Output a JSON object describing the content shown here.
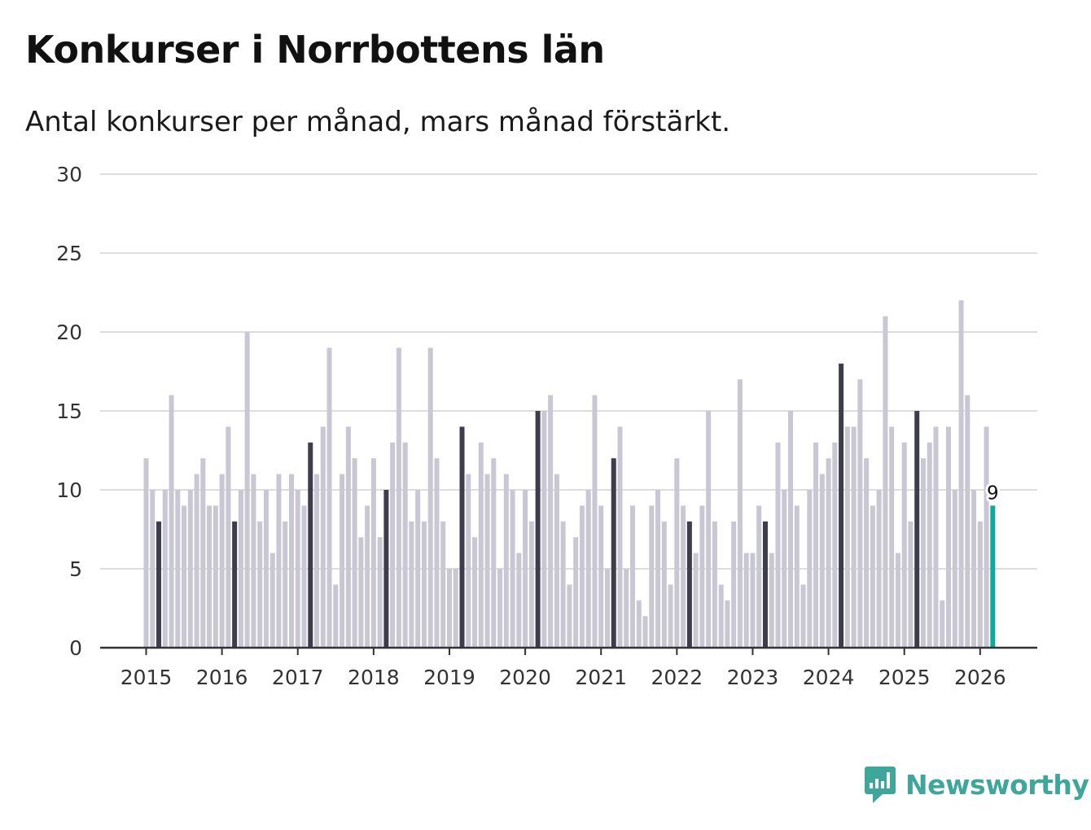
{
  "header": {
    "title": "Konkurser i Norrbottens län",
    "subtitle": "Antal konkurser per månad, mars månad förstärkt."
  },
  "brand": {
    "name": "Newsworthy",
    "icon": "newsworthy-logo-icon"
  },
  "colors": {
    "default_bar": "#c8c7d3",
    "highlight_bar": "#3e3d4d",
    "latest_bar": "#14a89b",
    "gridline": "#dddddd",
    "axis": "#333333",
    "brand": "#3fa69c"
  },
  "chart_data": {
    "type": "bar",
    "title": "Konkurser i Norrbottens län",
    "subtitle": "Antal konkurser per månad, mars månad förstärkt.",
    "xlabel": "",
    "ylabel": "",
    "ylim": [
      0,
      30
    ],
    "yticks": [
      0,
      5,
      10,
      15,
      20,
      25,
      30
    ],
    "xticks": [
      "2015",
      "2016",
      "2017",
      "2018",
      "2019",
      "2020",
      "2021",
      "2022",
      "2023",
      "2024",
      "2025",
      "2026"
    ],
    "grid": true,
    "start": "2015-01",
    "highlight_month": "03",
    "annotation": {
      "month": "2026-03",
      "text": "9"
    },
    "values": [
      12,
      10,
      8,
      10,
      16,
      10,
      9,
      10,
      11,
      12,
      9,
      9,
      11,
      14,
      8,
      10,
      20,
      11,
      8,
      10,
      6,
      11,
      8,
      11,
      10,
      9,
      13,
      11,
      14,
      19,
      4,
      11,
      14,
      12,
      7,
      9,
      12,
      7,
      10,
      13,
      19,
      13,
      8,
      10,
      8,
      19,
      12,
      8,
      5,
      5,
      14,
      11,
      7,
      13,
      11,
      12,
      5,
      11,
      10,
      6,
      10,
      8,
      15,
      15,
      16,
      11,
      8,
      4,
      7,
      9,
      10,
      16,
      9,
      5,
      12,
      14,
      5,
      9,
      3,
      2,
      9,
      10,
      8,
      4,
      12,
      9,
      8,
      6,
      9,
      15,
      8,
      4,
      3,
      8,
      17,
      6,
      6,
      9,
      8,
      6,
      13,
      10,
      15,
      9,
      4,
      10,
      13,
      11,
      12,
      13,
      18,
      14,
      14,
      17,
      12,
      9,
      10,
      21,
      14,
      6,
      13,
      8,
      15,
      12,
      13,
      14,
      3,
      14,
      10,
      22,
      16,
      10,
      8,
      14,
      9
    ]
  }
}
